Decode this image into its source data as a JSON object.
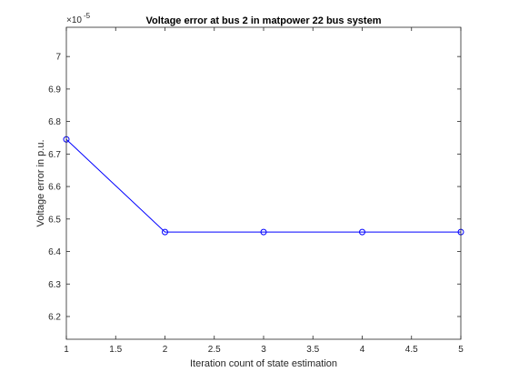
{
  "chart_data": {
    "type": "line",
    "title": "Voltage error at bus 2 in matpower 22 bus system",
    "xlabel": "Iteration count of state estimation",
    "ylabel": "Voltage error in p.u.",
    "y_exponent_base": "×10",
    "y_exponent": "-5",
    "xlim": [
      1,
      5
    ],
    "ylim": [
      6.13,
      7.09
    ],
    "x_ticks": [
      1,
      1.5,
      2,
      2.5,
      3,
      3.5,
      4,
      4.5,
      5
    ],
    "x_tick_labels": [
      "1",
      "1.5",
      "2",
      "2.5",
      "3",
      "3.5",
      "4",
      "4.5",
      "5"
    ],
    "y_ticks": [
      6.2,
      6.3,
      6.4,
      6.5,
      6.6,
      6.7,
      6.8,
      6.9,
      7
    ],
    "y_tick_labels": [
      "6.2",
      "6.3",
      "6.4",
      "6.5",
      "6.6",
      "6.7",
      "6.8",
      "6.9",
      "7"
    ],
    "grid": false,
    "series": [
      {
        "x": [
          1,
          2,
          3,
          4,
          5
        ],
        "y": [
          6.745,
          6.46,
          6.46,
          6.46,
          6.46
        ],
        "color": "#0000ff",
        "marker": "circle"
      }
    ]
  }
}
